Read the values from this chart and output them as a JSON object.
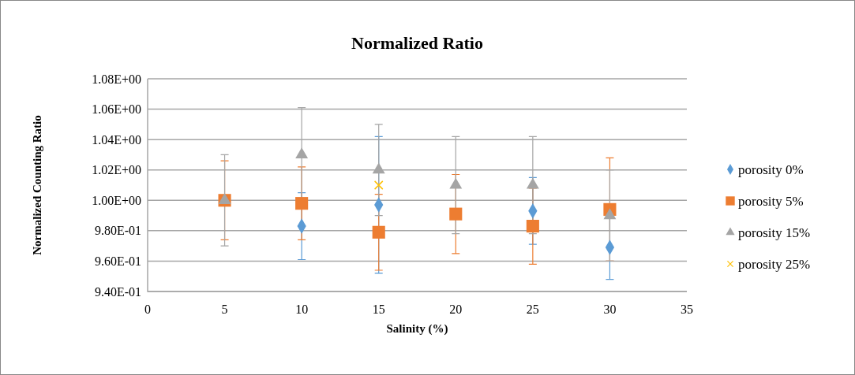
{
  "chart_data": {
    "type": "scatter",
    "title": "Normalized Ratio",
    "xlabel": "Salinity (%)",
    "ylabel": "Normalized Counting Ratio",
    "x": [
      5,
      10,
      15,
      20,
      25,
      30
    ],
    "series": [
      {
        "name": "porosity 0%",
        "color": "#5b9bd5",
        "marker": "diamond",
        "values": [
          null,
          0.983,
          0.997,
          null,
          0.993,
          0.969
        ],
        "errors": [
          null,
          0.022,
          0.045,
          null,
          0.022,
          0.021
        ]
      },
      {
        "name": "porosity 5%",
        "color": "#ed7d31",
        "marker": "square",
        "values": [
          1.0,
          0.998,
          0.979,
          0.991,
          0.983,
          0.994
        ],
        "errors": [
          0.026,
          0.024,
          0.025,
          0.026,
          0.025,
          0.034
        ]
      },
      {
        "name": "porosity 15%",
        "color": "#a5a5a5",
        "marker": "triangle",
        "values": [
          1.0,
          1.03,
          1.02,
          1.01,
          1.01,
          0.99
        ],
        "errors": [
          0.03,
          0.031,
          0.03,
          0.032,
          0.032,
          0.03
        ]
      },
      {
        "name": "porosity 25%",
        "color": "#ffc000",
        "marker": "cross",
        "values": [
          null,
          null,
          1.01,
          null,
          null,
          null
        ]
      }
    ],
    "xlim": [
      0,
      35
    ],
    "xticks": [
      0,
      5,
      10,
      15,
      20,
      25,
      30,
      35
    ],
    "ylim": [
      0.94,
      1.08
    ],
    "yticks": [
      {
        "value": 0.94,
        "label": "9.40E-01"
      },
      {
        "value": 0.96,
        "label": "9.60E-01"
      },
      {
        "value": 0.98,
        "label": "9.80E-01"
      },
      {
        "value": 1.0,
        "label": "1.00E+00"
      },
      {
        "value": 1.02,
        "label": "1.02E+00"
      },
      {
        "value": 1.04,
        "label": "1.04E+00"
      },
      {
        "value": 1.06,
        "label": "1.06E+00"
      },
      {
        "value": 1.08,
        "label": "1.08E+00"
      }
    ],
    "grid": "y",
    "legend": "right"
  }
}
